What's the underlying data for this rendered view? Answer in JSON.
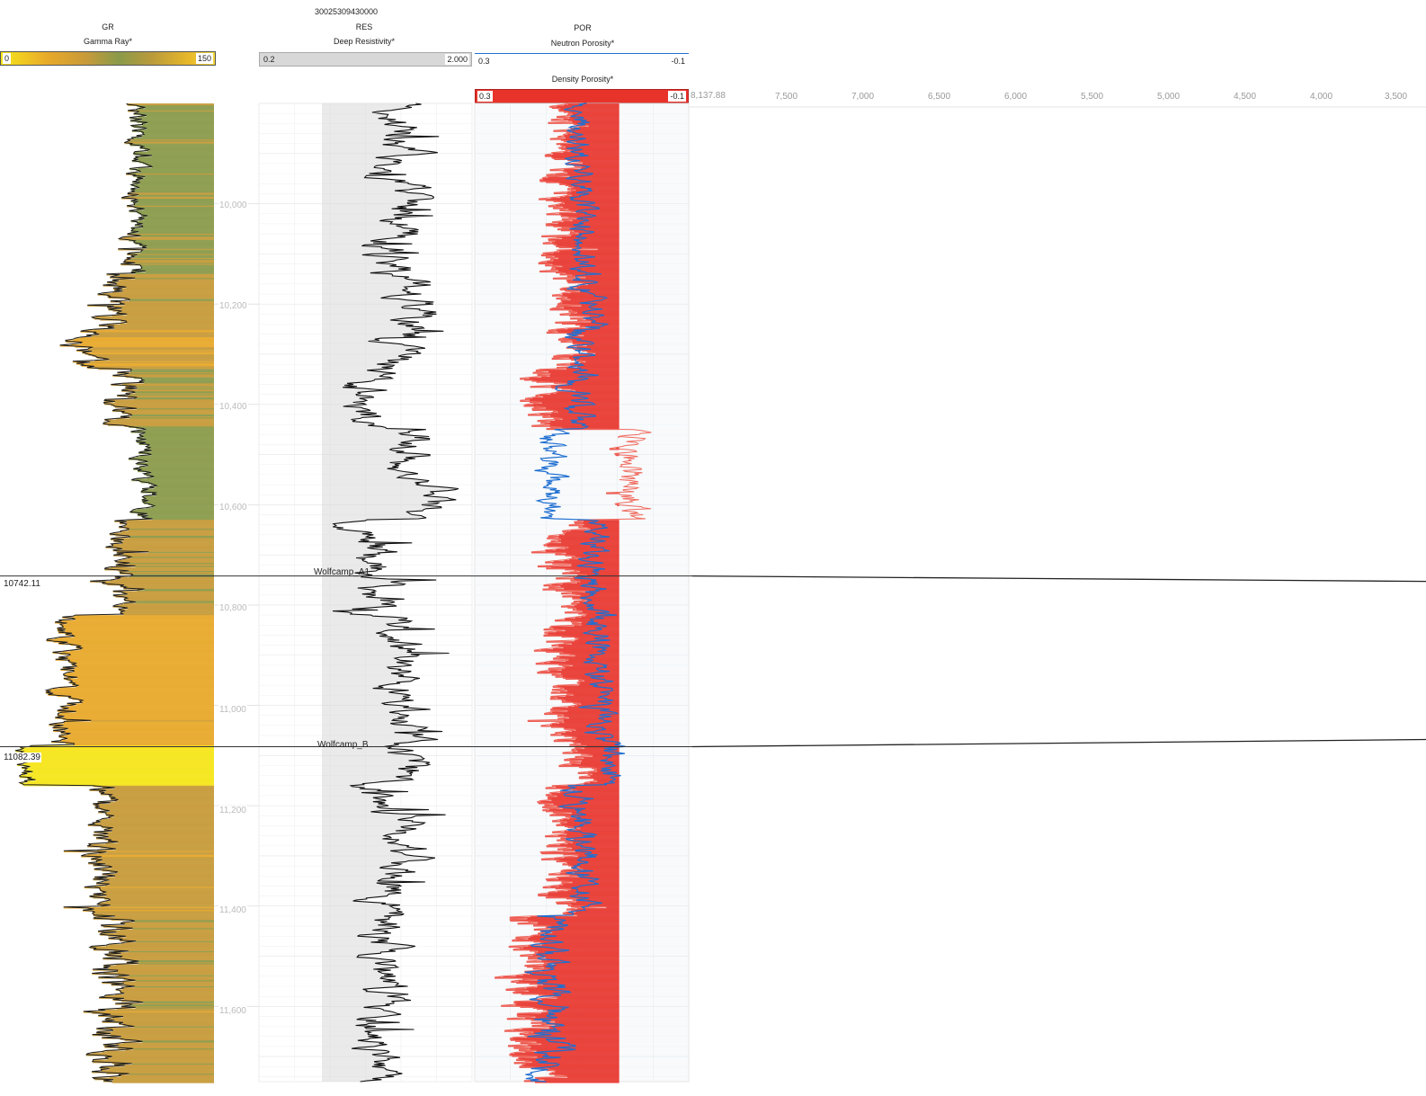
{
  "well": {
    "api": "30025309430000"
  },
  "tracks": {
    "gr": {
      "mnemonic": "GR",
      "curve": "Gamma Ray*",
      "min": "0",
      "max": "150",
      "colors": [
        "#f5e51a",
        "#e8a92a",
        "#c79a3a",
        "#8a9a4a"
      ]
    },
    "res": {
      "mnemonic": "RES",
      "curve": "Deep Resistivity*",
      "min": "0.2",
      "max": "2.000",
      "fill": "#d8d8d8"
    },
    "por": {
      "mnemonic": "POR",
      "neutron": {
        "curve": "Neutron Porosity*",
        "min": "0.3",
        "max": "-0.1",
        "color": "#1f6fd1"
      },
      "density": {
        "curve": "Density Porosity*",
        "min": "0.3",
        "max": "-0.1",
        "color": "#e8332a"
      }
    }
  },
  "cross_section_axis": {
    "start_label": "8,137.88",
    "ticks": [
      "7,500",
      "7,000",
      "6,500",
      "6,000",
      "5,500",
      "5,000",
      "4,500",
      "4,000",
      "3,500"
    ]
  },
  "depth_ticks": [
    "10,000",
    "10,200",
    "10,400",
    "10,600",
    "10,800",
    "11,000",
    "11,200",
    "11,400",
    "11,600"
  ],
  "tops": [
    {
      "name": "Wolfcamp_A1",
      "depth_label": "10742.11"
    },
    {
      "name": "Wolfcamp_B",
      "depth_label": "11082.39"
    }
  ],
  "chart_data": {
    "type": "line",
    "depth_range": [
      9800,
      11750
    ],
    "depth_ticks": [
      10000,
      10200,
      10400,
      10600,
      10800,
      11000,
      11200,
      11400,
      11600
    ],
    "tops": [
      {
        "name": "Wolfcamp_A1",
        "depth": 10742.11
      },
      {
        "name": "Wolfcamp_B",
        "depth": 11082.39
      }
    ],
    "zones": [
      {
        "from": 9800,
        "to": 10140,
        "gr": 95,
        "res_log": 0.55,
        "nphi": 0.1,
        "dphi": 0.14,
        "var": 0.35
      },
      {
        "from": 10140,
        "to": 10250,
        "gr": 80,
        "res_log": 0.62,
        "nphi": 0.08,
        "dphi": 0.12,
        "var": 0.55
      },
      {
        "from": 10250,
        "to": 10330,
        "gr": 60,
        "res_log": 0.45,
        "nphi": 0.11,
        "dphi": 0.13,
        "var": 0.55
      },
      {
        "from": 10330,
        "to": 10450,
        "gr": 85,
        "res_log": 0.3,
        "nphi": 0.1,
        "dphi": 0.17,
        "var": 0.55
      },
      {
        "from": 10450,
        "to": 10630,
        "gr": 100,
        "res_log": 0.65,
        "nphi": 0.16,
        "dphi": 0.01,
        "var": 0.35
      },
      {
        "from": 10630,
        "to": 10820,
        "gr": 85,
        "res_log": 0.35,
        "nphi": 0.08,
        "dphi": 0.13,
        "var": 0.45
      },
      {
        "from": 10820,
        "to": 11080,
        "gr": 45,
        "res_log": 0.55,
        "nphi": 0.07,
        "dphi": 0.14,
        "var": 0.45
      },
      {
        "from": 11080,
        "to": 11160,
        "gr": 20,
        "res_log": 0.55,
        "nphi": 0.05,
        "dphi": 0.1,
        "var": 0.35
      },
      {
        "from": 11160,
        "to": 11420,
        "gr": 70,
        "res_log": 0.5,
        "nphi": 0.1,
        "dphi": 0.14,
        "var": 0.55
      },
      {
        "from": 11420,
        "to": 11750,
        "gr": 80,
        "res_log": 0.4,
        "nphi": 0.16,
        "dphi": 0.2,
        "var": 0.75
      }
    ],
    "series": [
      {
        "name": "Gamma Ray*",
        "unit_range": [
          0,
          150
        ]
      },
      {
        "name": "Deep Resistivity*",
        "unit_range": [
          0.2,
          2000
        ],
        "scale": "log"
      },
      {
        "name": "Neutron Porosity*",
        "unit_range": [
          0.3,
          -0.1
        ]
      },
      {
        "name": "Density Porosity*",
        "unit_range": [
          0.3,
          -0.1
        ]
      }
    ],
    "xaxis_cross_section": {
      "ticks": [
        8137.88,
        7500,
        7000,
        6500,
        6000,
        5500,
        5000,
        4500,
        4000,
        3500
      ]
    }
  }
}
